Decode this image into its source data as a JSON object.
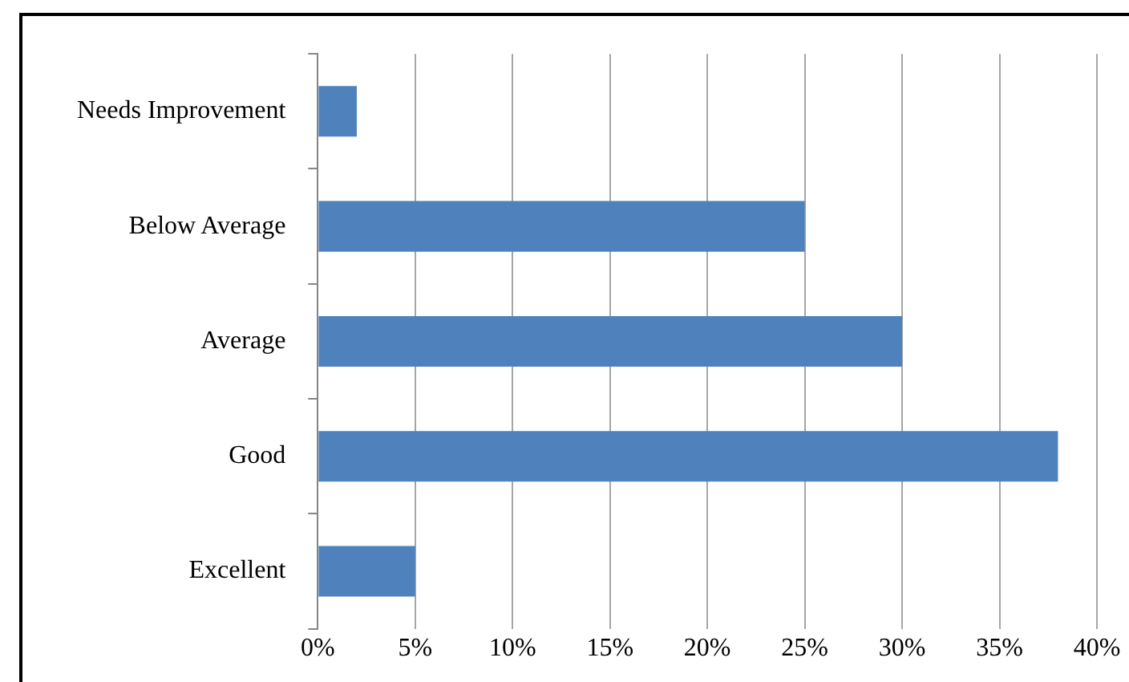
{
  "chart_data": {
    "type": "bar",
    "orientation": "horizontal",
    "categories": [
      "Needs Improvement",
      "Below Average",
      "Average",
      "Good",
      "Excellent"
    ],
    "values": [
      2,
      25,
      30,
      38,
      5
    ],
    "color": "#4f81bd",
    "xlim": [
      0,
      40
    ],
    "xticks": [
      {
        "value": 0,
        "label": "0%"
      },
      {
        "value": 5,
        "label": "5%"
      },
      {
        "value": 10,
        "label": "10%"
      },
      {
        "value": 15,
        "label": "15%"
      },
      {
        "value": 20,
        "label": "20%"
      },
      {
        "value": 25,
        "label": "25%"
      },
      {
        "value": 30,
        "label": "30%"
      },
      {
        "value": 35,
        "label": "35%"
      },
      {
        "value": 40,
        "label": "40%"
      }
    ],
    "grid": "x"
  }
}
